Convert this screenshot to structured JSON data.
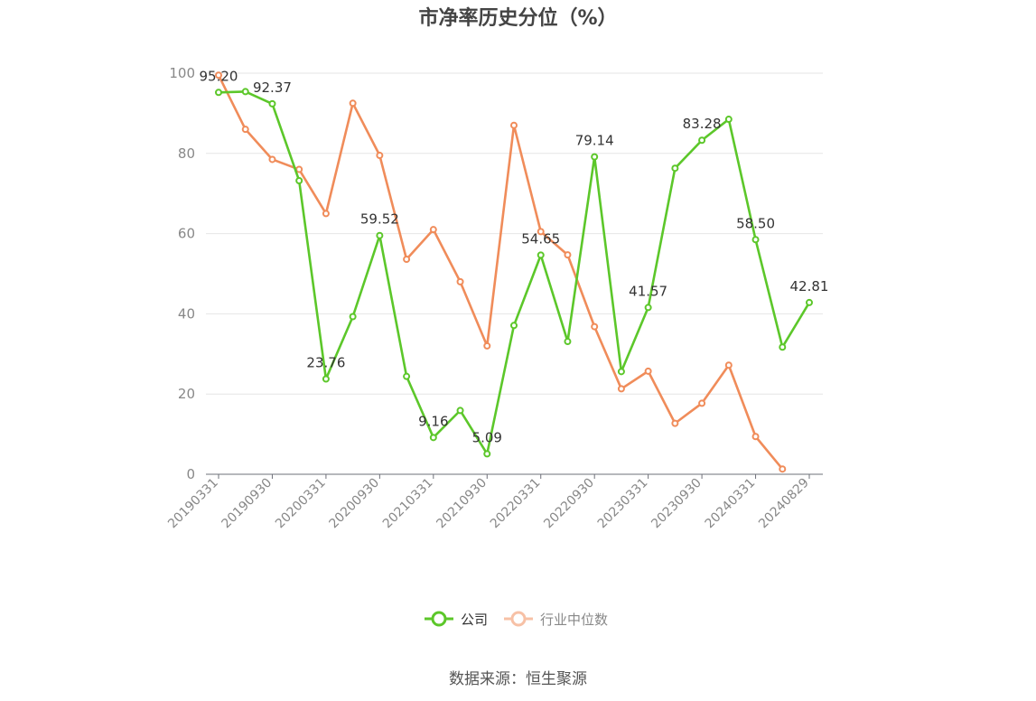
{
  "chart_data": {
    "type": "line",
    "title": "市净率历史分位（%）",
    "source": "数据来源：恒生聚源",
    "xlabel": "",
    "ylabel": "",
    "ylim": [
      0,
      100
    ],
    "yticks": [
      0,
      20,
      40,
      60,
      80,
      100
    ],
    "grid": true,
    "legend_position": "bottom-center",
    "x": [
      "20190331",
      "20190630",
      "20190930",
      "20191231",
      "20200331",
      "20200630",
      "20200930",
      "20201231",
      "20210331",
      "20210630",
      "20210930",
      "20211231",
      "20220331",
      "20220630",
      "20220930",
      "20221231",
      "20230331",
      "20230630",
      "20230930",
      "20231231",
      "20240331",
      "20240630",
      "20240829"
    ],
    "xtick_labels": [
      "20190331",
      "20190930",
      "20200331",
      "20200930",
      "20210331",
      "20210930",
      "20220331",
      "20220930",
      "20230331",
      "20230930",
      "20240331",
      "20240829"
    ],
    "series": [
      {
        "name": "公司",
        "color": "#5cc72a",
        "values": [
          95.2,
          95.4,
          92.37,
          73.2,
          23.76,
          39.3,
          59.52,
          24.4,
          9.16,
          15.9,
          5.09,
          37.1,
          54.65,
          33.1,
          79.14,
          25.6,
          41.57,
          76.3,
          83.28,
          88.5,
          58.5,
          31.7,
          42.81
        ],
        "labels": [
          "95.20",
          "",
          "92.37",
          "",
          "23.76",
          "",
          "59.52",
          "",
          "9.16",
          "",
          "5.09",
          "",
          "54.65",
          "",
          "79.14",
          "",
          "41.57",
          "",
          "83.28",
          "",
          "58.50",
          "",
          "42.81"
        ]
      },
      {
        "name": "行业中位数",
        "color": "#f08c5a",
        "values": [
          99.5,
          86.0,
          78.5,
          76.0,
          65.0,
          92.5,
          79.5,
          53.6,
          61.0,
          48.0,
          32.0,
          87.0,
          60.5,
          54.7,
          36.8,
          21.3,
          25.7,
          12.7,
          17.7,
          27.2,
          9.4,
          1.3,
          null
        ]
      }
    ]
  }
}
